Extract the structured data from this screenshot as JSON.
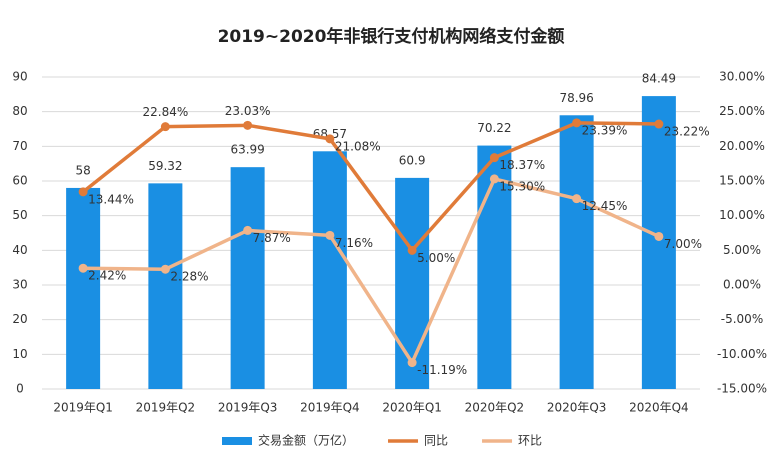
{
  "chart_data": {
    "type": "bar",
    "title": "2019~2020年非银行支付机构网络支付金额",
    "categories": [
      "2019年Q1",
      "2019年Q2",
      "2019年Q3",
      "2019年Q4",
      "2020年Q1",
      "2020年Q2",
      "2020年Q3",
      "2020年Q4"
    ],
    "series": [
      {
        "name": "交易金额（万亿）",
        "type": "bar",
        "axis": "y",
        "color": "#1a8fe3",
        "values": [
          58,
          59.32,
          63.99,
          68.57,
          60.9,
          70.22,
          78.96,
          84.49
        ]
      },
      {
        "name": "同比",
        "type": "line",
        "axis": "y2",
        "color": "#e07b39",
        "values": [
          13.44,
          22.84,
          23.03,
          21.08,
          5.0,
          18.37,
          23.39,
          23.22
        ],
        "value_labels": [
          "13.44%",
          "22.84%",
          "23.03%",
          "21.08%",
          "5.00%",
          "18.37%",
          "23.39%",
          "23.22%"
        ]
      },
      {
        "name": "环比",
        "type": "line",
        "axis": "y2",
        "color": "#f0b48a",
        "values": [
          2.42,
          2.28,
          7.87,
          7.16,
          -11.19,
          15.3,
          12.45,
          7.0
        ],
        "value_labels": [
          "2.42%",
          "2.28%",
          "7.87%",
          "7.16%",
          "-11.19%",
          "15.30%",
          "12.45%",
          "7.00%"
        ]
      }
    ],
    "ylim": [
      0,
      90
    ],
    "yticks": [
      0,
      10,
      20,
      30,
      40,
      50,
      60,
      70,
      80,
      90
    ],
    "y2lim": [
      -15,
      30
    ],
    "y2ticks": [
      {
        "value": -15,
        "label": "-15.00%"
      },
      {
        "value": -10,
        "label": "-10.00%"
      },
      {
        "value": -5,
        "label": "-5.00%"
      },
      {
        "value": 0,
        "label": "0.00%"
      },
      {
        "value": 5,
        "label": "5.00%"
      },
      {
        "value": 10,
        "label": "10.00%"
      },
      {
        "value": 15,
        "label": "15.00%"
      },
      {
        "value": 20,
        "label": "20.00%"
      },
      {
        "value": 25,
        "label": "25.00%"
      },
      {
        "value": 30,
        "label": "30.00%"
      }
    ],
    "grid": true
  }
}
